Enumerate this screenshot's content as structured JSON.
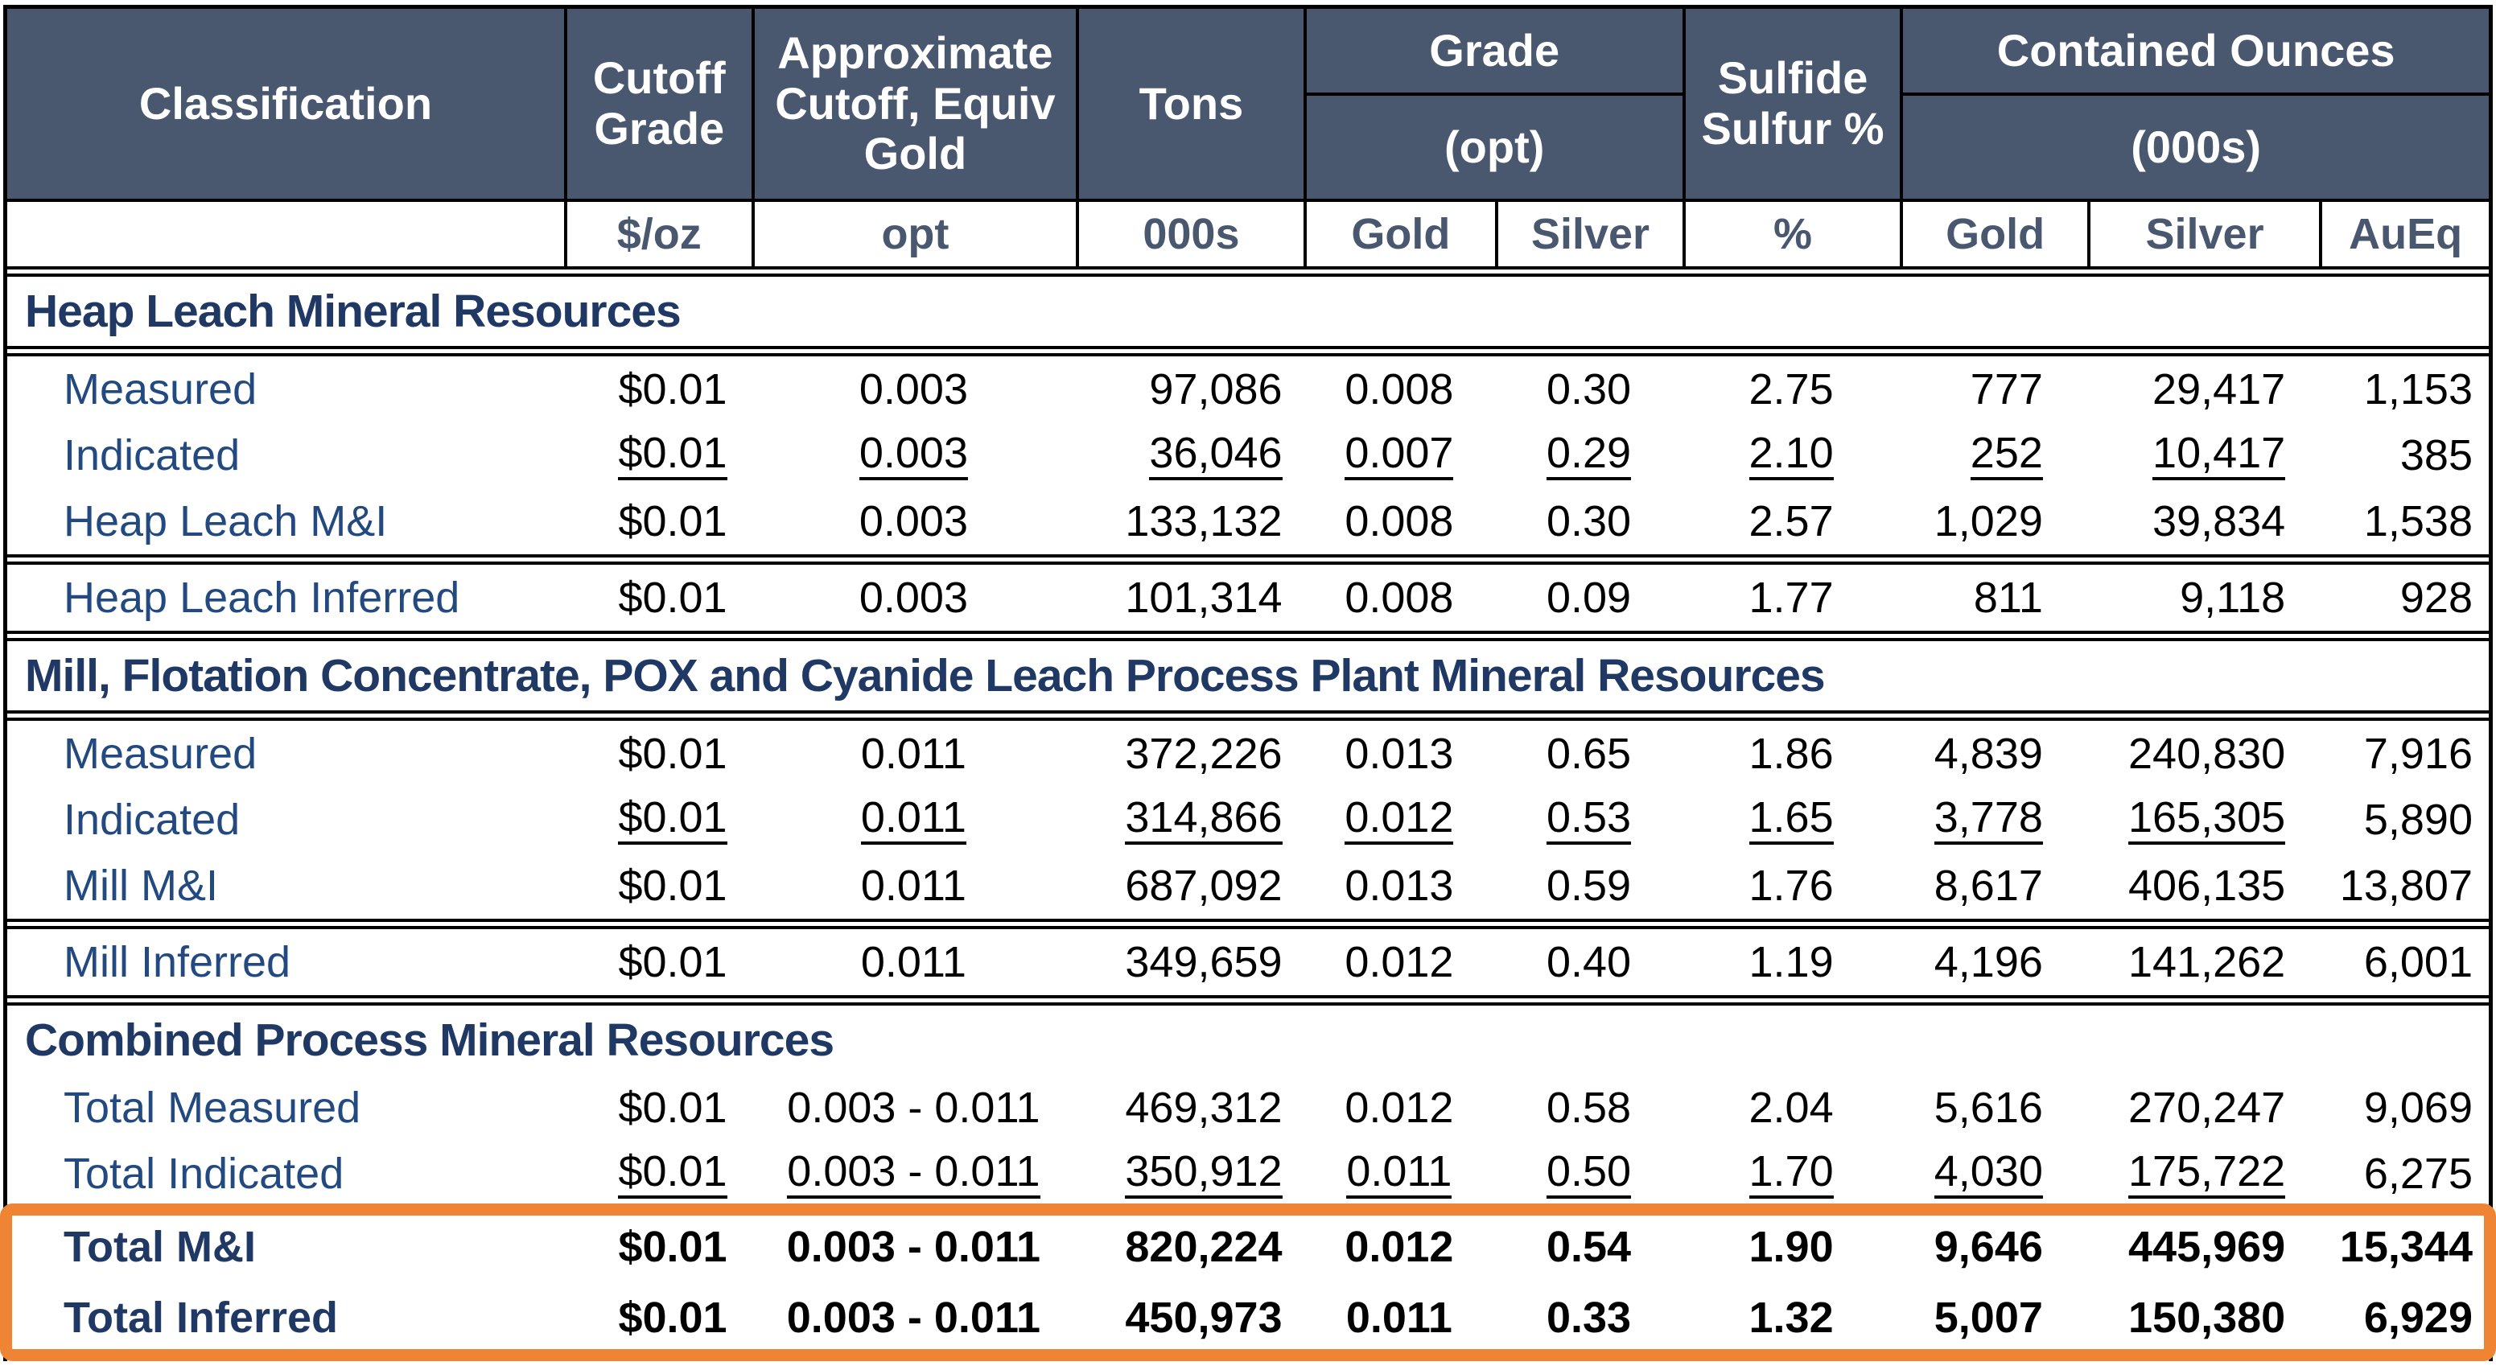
{
  "colors": {
    "header_bg": "#4A586F",
    "navy_text": "#1F3864",
    "highlight_orange": "#EE8434",
    "rule_black": "#000000"
  },
  "table": {
    "header": {
      "classification": "Classification",
      "cutoff_grade": "Cutoff Grade",
      "approx_cutoff": "Approximate Cutoff, Equiv Gold",
      "tons": "Tons",
      "grade": "Grade",
      "grade_unit": "(opt)",
      "sulfide_sulfur": "Sulfide Sulfur %",
      "contained_ounces": "Contained Ounces",
      "contained_unit": "(000s)",
      "units": [
        "",
        "$/oz",
        "opt",
        "000s",
        "Gold",
        "Silver",
        "%",
        "Gold",
        "Silver",
        "AuEq"
      ]
    },
    "sections": [
      {
        "title": "Heap Leach Mineral Resources",
        "rule_below_title": true,
        "rows": [
          {
            "label": "Measured",
            "values": [
              "$0.01",
              "0.003",
              "97,086",
              "0.008",
              "0.30",
              "2.75",
              "777",
              "29,417",
              "1,153"
            ]
          },
          {
            "label": "Indicated",
            "underline": true,
            "values": [
              "$0.01",
              "0.003",
              "36,046",
              "0.007",
              "0.29",
              "2.10",
              "252",
              "10,417",
              "385"
            ]
          },
          {
            "label": "Heap Leach M&I",
            "values": [
              "$0.01",
              "0.003",
              "133,132",
              "0.008",
              "0.30",
              "2.57",
              "1,029",
              "39,834",
              "1,538"
            ]
          },
          {
            "label": "Heap Leach Inferred",
            "sep_before": true,
            "values": [
              "$0.01",
              "0.003",
              "101,314",
              "0.008",
              "0.09",
              "1.77",
              "811",
              "9,118",
              "928"
            ]
          }
        ]
      },
      {
        "title": "Mill, Flotation Concentrate, POX and Cyanide Leach Process Plant Mineral Resources",
        "rule_below_title": true,
        "rows": [
          {
            "label": "Measured",
            "values": [
              "$0.01",
              "0.011",
              "372,226",
              "0.013",
              "0.65",
              "1.86",
              "4,839",
              "240,830",
              "7,916"
            ]
          },
          {
            "label": "Indicated",
            "underline": true,
            "values": [
              "$0.01",
              "0.011",
              "314,866",
              "0.012",
              "0.53",
              "1.65",
              "3,778",
              "165,305",
              "5,890"
            ]
          },
          {
            "label": "Mill M&I",
            "values": [
              "$0.01",
              "0.011",
              "687,092",
              "0.013",
              "0.59",
              "1.76",
              "8,617",
              "406,135",
              "13,807"
            ]
          },
          {
            "label": "Mill Inferred",
            "sep_before": true,
            "values": [
              "$0.01",
              "0.011",
              "349,659",
              "0.012",
              "0.40",
              "1.19",
              "4,196",
              "141,262",
              "6,001"
            ]
          }
        ]
      },
      {
        "title": "Combined Process Mineral Resources",
        "rule_below_title": false,
        "rows": [
          {
            "label": "Total Measured",
            "values": [
              "$0.01",
              "0.003 - 0.011",
              "469,312",
              "0.012",
              "0.58",
              "2.04",
              "5,616",
              "270,247",
              "9,069"
            ]
          },
          {
            "label": "Total Indicated",
            "underline": true,
            "values": [
              "$0.01",
              "0.003 - 0.011",
              "350,912",
              "0.011",
              "0.50",
              "1.70",
              "4,030",
              "175,722",
              "6,275"
            ]
          },
          {
            "label": "Total M&I",
            "bold": true,
            "highlight": true,
            "values": [
              "$0.01",
              "0.003 - 0.011",
              "820,224",
              "0.012",
              "0.54",
              "1.90",
              "9,646",
              "445,969",
              "15,344"
            ]
          },
          {
            "label": "Total Inferred",
            "bold": true,
            "highlight": true,
            "values": [
              "$0.01",
              "0.003 - 0.011",
              "450,973",
              "0.011",
              "0.33",
              "1.32",
              "5,007",
              "150,380",
              "6,929"
            ]
          }
        ]
      }
    ]
  }
}
